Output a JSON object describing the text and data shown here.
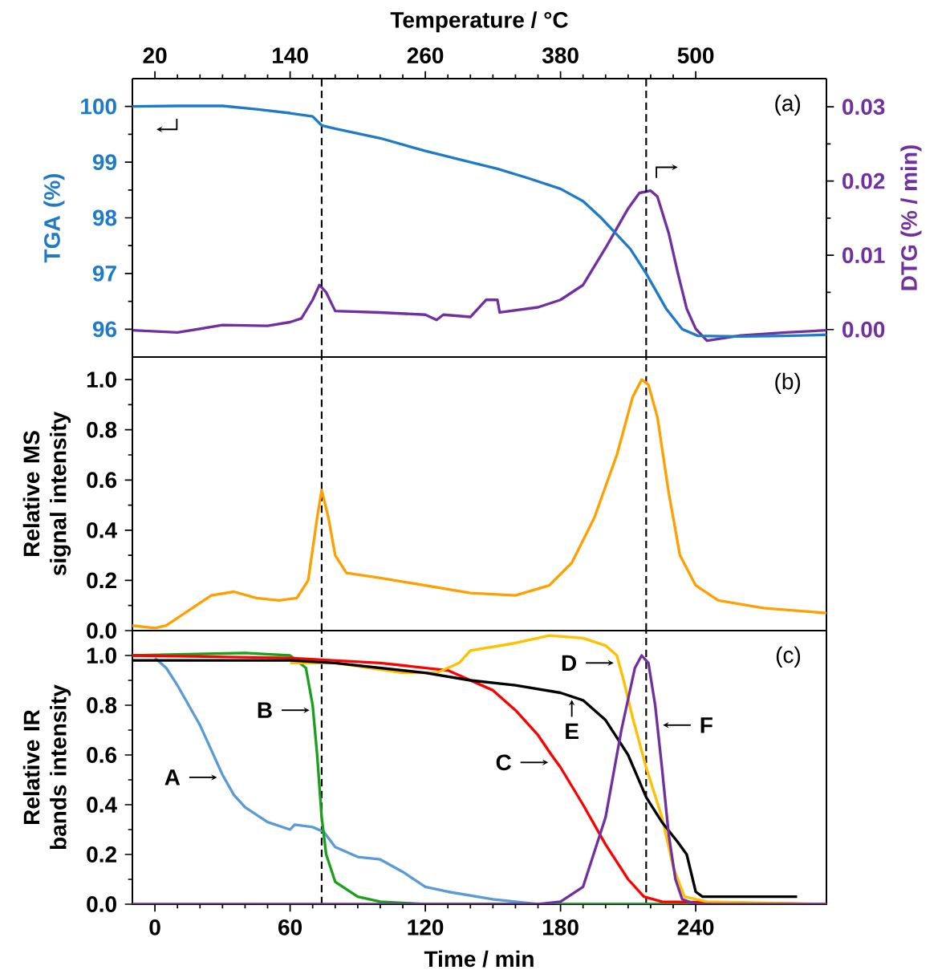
{
  "chart_data": [
    {
      "type": "line",
      "x2label": "Temperature / °C",
      "ylabel": "TGA (%)",
      "y2label": "DTG (% / min)",
      "tick_labels": "y",
      "xlim": [
        -10,
        298
      ],
      "ylim": [
        95.5,
        100.5
      ],
      "yticks": [
        96,
        97,
        98,
        99,
        100
      ],
      "y2lim": [
        -0.0037,
        0.0338
      ],
      "y2ticks": [
        {
          "value": 0,
          "label": "0.00"
        },
        {
          "value": 0.01,
          "label": "0.01"
        },
        {
          "value": 0.02,
          "label": "0.02"
        },
        {
          "value": 0.03,
          "label": "0.03"
        }
      ],
      "x2lim": [
        0,
        616
      ],
      "x2ticks": [
        20,
        140,
        260,
        380,
        500
      ],
      "series": [
        {
          "color": "#1f7ac8",
          "x": [
            -10,
            10,
            30,
            45,
            60,
            70,
            74,
            80,
            100,
            120,
            140,
            152,
            165,
            180,
            190,
            198,
            205,
            211,
            218,
            227,
            234,
            241,
            260,
            280,
            298
          ],
          "values": [
            100.0,
            100.01,
            100.01,
            99.95,
            99.88,
            99.82,
            99.66,
            99.6,
            99.43,
            99.2,
            99.0,
            98.88,
            98.72,
            98.52,
            98.3,
            98.0,
            97.7,
            97.44,
            97.0,
            96.36,
            96.0,
            95.88,
            95.87,
            95.88,
            95.9
          ]
        },
        {
          "color": "#7030a0",
          "axis": "y2",
          "x": [
            -10,
            10,
            30,
            50,
            60,
            65,
            70,
            73,
            76,
            80,
            100,
            120,
            125,
            128,
            140,
            147,
            152,
            153,
            170,
            180,
            190,
            200,
            210,
            215,
            220,
            223,
            228,
            232,
            236,
            240,
            245,
            260,
            280,
            298
          ],
          "values": [
            -0.0001,
            -0.0004,
            0.0006,
            0.0005,
            0.001,
            0.0015,
            0.004,
            0.006,
            0.005,
            0.0025,
            0.0023,
            0.002,
            0.0013,
            0.002,
            0.0017,
            0.004,
            0.004,
            0.0023,
            0.003,
            0.004,
            0.006,
            0.011,
            0.0163,
            0.0184,
            0.0187,
            0.0179,
            0.013,
            0.0077,
            0.0028,
            0.0001,
            -0.0015,
            -0.0008,
            -0.0004,
            -0.0001
          ]
        }
      ],
      "ref_lines": [
        {
          "axis": "x",
          "value": 74
        },
        {
          "axis": "x",
          "value": 218
        }
      ],
      "annotations": [
        "(a)"
      ]
    },
    {
      "type": "line",
      "ylabel": "Relative MS signal intensity",
      "tick_labels": "y",
      "xlim": [
        -10,
        298
      ],
      "ylim": [
        0,
        1.09
      ],
      "yticks": [
        {
          "value": 0,
          "label": "0.0"
        },
        {
          "value": 0.2,
          "label": "0.2"
        },
        {
          "value": 0.4,
          "label": "0.4"
        },
        {
          "value": 0.6,
          "label": "0.6"
        },
        {
          "value": 0.8,
          "label": "0.8"
        },
        {
          "value": 1,
          "label": "1.0"
        }
      ],
      "series": [
        {
          "color": "#ffa000",
          "x": [
            -10,
            0,
            5,
            15,
            25,
            35,
            45,
            55,
            63,
            68,
            72,
            74,
            77,
            80,
            85,
            100,
            120,
            140,
            160,
            175,
            185,
            195,
            205,
            212,
            216,
            219,
            223,
            228,
            233,
            240,
            250,
            270,
            298
          ],
          "values": [
            0.02,
            0.01,
            0.02,
            0.08,
            0.14,
            0.155,
            0.13,
            0.12,
            0.13,
            0.2,
            0.45,
            0.56,
            0.45,
            0.3,
            0.23,
            0.21,
            0.18,
            0.15,
            0.14,
            0.18,
            0.27,
            0.45,
            0.7,
            0.93,
            1.0,
            0.98,
            0.85,
            0.55,
            0.3,
            0.18,
            0.12,
            0.09,
            0.07
          ]
        }
      ],
      "ref_lines": [
        {
          "axis": "x",
          "value": 74
        },
        {
          "axis": "x",
          "value": 218
        }
      ],
      "annotations": [
        "(b)"
      ]
    },
    {
      "type": "line",
      "xlabel": "Time / min",
      "ylabel": "Relative IR bands intensity",
      "xlim": [
        -10,
        298
      ],
      "xticks": [
        0,
        60,
        120,
        180,
        240
      ],
      "ylim": [
        0,
        1.1
      ],
      "yticks": [
        {
          "value": 0,
          "label": "0.0"
        },
        {
          "value": 0.2,
          "label": "0.2"
        },
        {
          "value": 0.4,
          "label": "0.4"
        },
        {
          "value": 0.6,
          "label": "0.6"
        },
        {
          "value": 0.8,
          "label": "0.8"
        },
        {
          "value": 1,
          "label": "1.0"
        }
      ],
      "series": [
        {
          "color": "#5b9bd5",
          "x": [
            0,
            5,
            10,
            15,
            20,
            25,
            30,
            35,
            40,
            50,
            60,
            62,
            70,
            75,
            80,
            90,
            100,
            110,
            120,
            130,
            150,
            170,
            250
          ],
          "values": [
            0.99,
            0.95,
            0.88,
            0.8,
            0.72,
            0.62,
            0.52,
            0.44,
            0.39,
            0.33,
            0.3,
            0.32,
            0.31,
            0.29,
            0.23,
            0.19,
            0.18,
            0.13,
            0.07,
            0.05,
            0.02,
            0.0,
            0.0
          ]
        },
        {
          "color": "#1aa01a",
          "x": [
            -10,
            40,
            60,
            67,
            70,
            72,
            74,
            76,
            80,
            90,
            100,
            120,
            250
          ],
          "values": [
            1.0,
            1.01,
            1.0,
            0.95,
            0.8,
            0.6,
            0.35,
            0.2,
            0.09,
            0.03,
            0.01,
            0.0,
            0.0
          ]
        },
        {
          "color": "#ff0000",
          "x": [
            -10,
            60,
            100,
            130,
            150,
            160,
            170,
            176,
            180,
            190,
            200,
            210,
            217,
            225,
            298
          ],
          "values": [
            1.0,
            0.99,
            0.97,
            0.94,
            0.86,
            0.78,
            0.68,
            0.6,
            0.55,
            0.4,
            0.24,
            0.1,
            0.03,
            0.01,
            0.0
          ]
        },
        {
          "color": "#ffc000",
          "x": [
            60,
            80,
            110,
            125,
            135,
            140,
            160,
            175,
            190,
            200,
            205,
            208,
            212,
            218,
            225,
            230,
            235,
            245,
            298
          ],
          "values": [
            0.97,
            0.97,
            0.93,
            0.93,
            0.97,
            1.02,
            1.05,
            1.08,
            1.07,
            1.04,
            1.0,
            0.9,
            0.75,
            0.55,
            0.35,
            0.15,
            0.03,
            0.01,
            0.0
          ]
        },
        {
          "color": "#000000",
          "x": [
            -10,
            60,
            80,
            100,
            120,
            140,
            160,
            180,
            190,
            200,
            210,
            218,
            225,
            232,
            236,
            240,
            243,
            285
          ],
          "values": [
            0.98,
            0.98,
            0.97,
            0.95,
            0.93,
            0.9,
            0.88,
            0.85,
            0.82,
            0.74,
            0.6,
            0.43,
            0.33,
            0.25,
            0.2,
            0.05,
            0.03,
            0.03
          ]
        },
        {
          "color": "#7030a0",
          "x": [
            -10,
            170,
            180,
            190,
            200,
            207,
            213,
            216,
            219,
            222,
            225,
            228,
            231,
            234,
            240,
            298
          ],
          "values": [
            0.0,
            0.0,
            0.01,
            0.07,
            0.35,
            0.7,
            0.95,
            1.0,
            0.97,
            0.8,
            0.55,
            0.28,
            0.1,
            0.02,
            0.0,
            0.0
          ]
        }
      ],
      "ref_lines": [
        {
          "axis": "x",
          "value": 74
        },
        {
          "axis": "x",
          "value": 218
        }
      ],
      "annotations": [
        "(c)",
        {
          "text": "A",
          "x": 29,
          "y": 0.51
        },
        {
          "text": "B",
          "x": 70,
          "y": 0.78
        },
        {
          "text": "C",
          "x": 176,
          "y": 0.57
        },
        {
          "text": "D",
          "x": 205,
          "y": 0.97
        },
        {
          "text": "E",
          "x": 185,
          "y": 0.835
        },
        {
          "text": "F",
          "x": 224,
          "y": 0.72
        }
      ]
    }
  ]
}
